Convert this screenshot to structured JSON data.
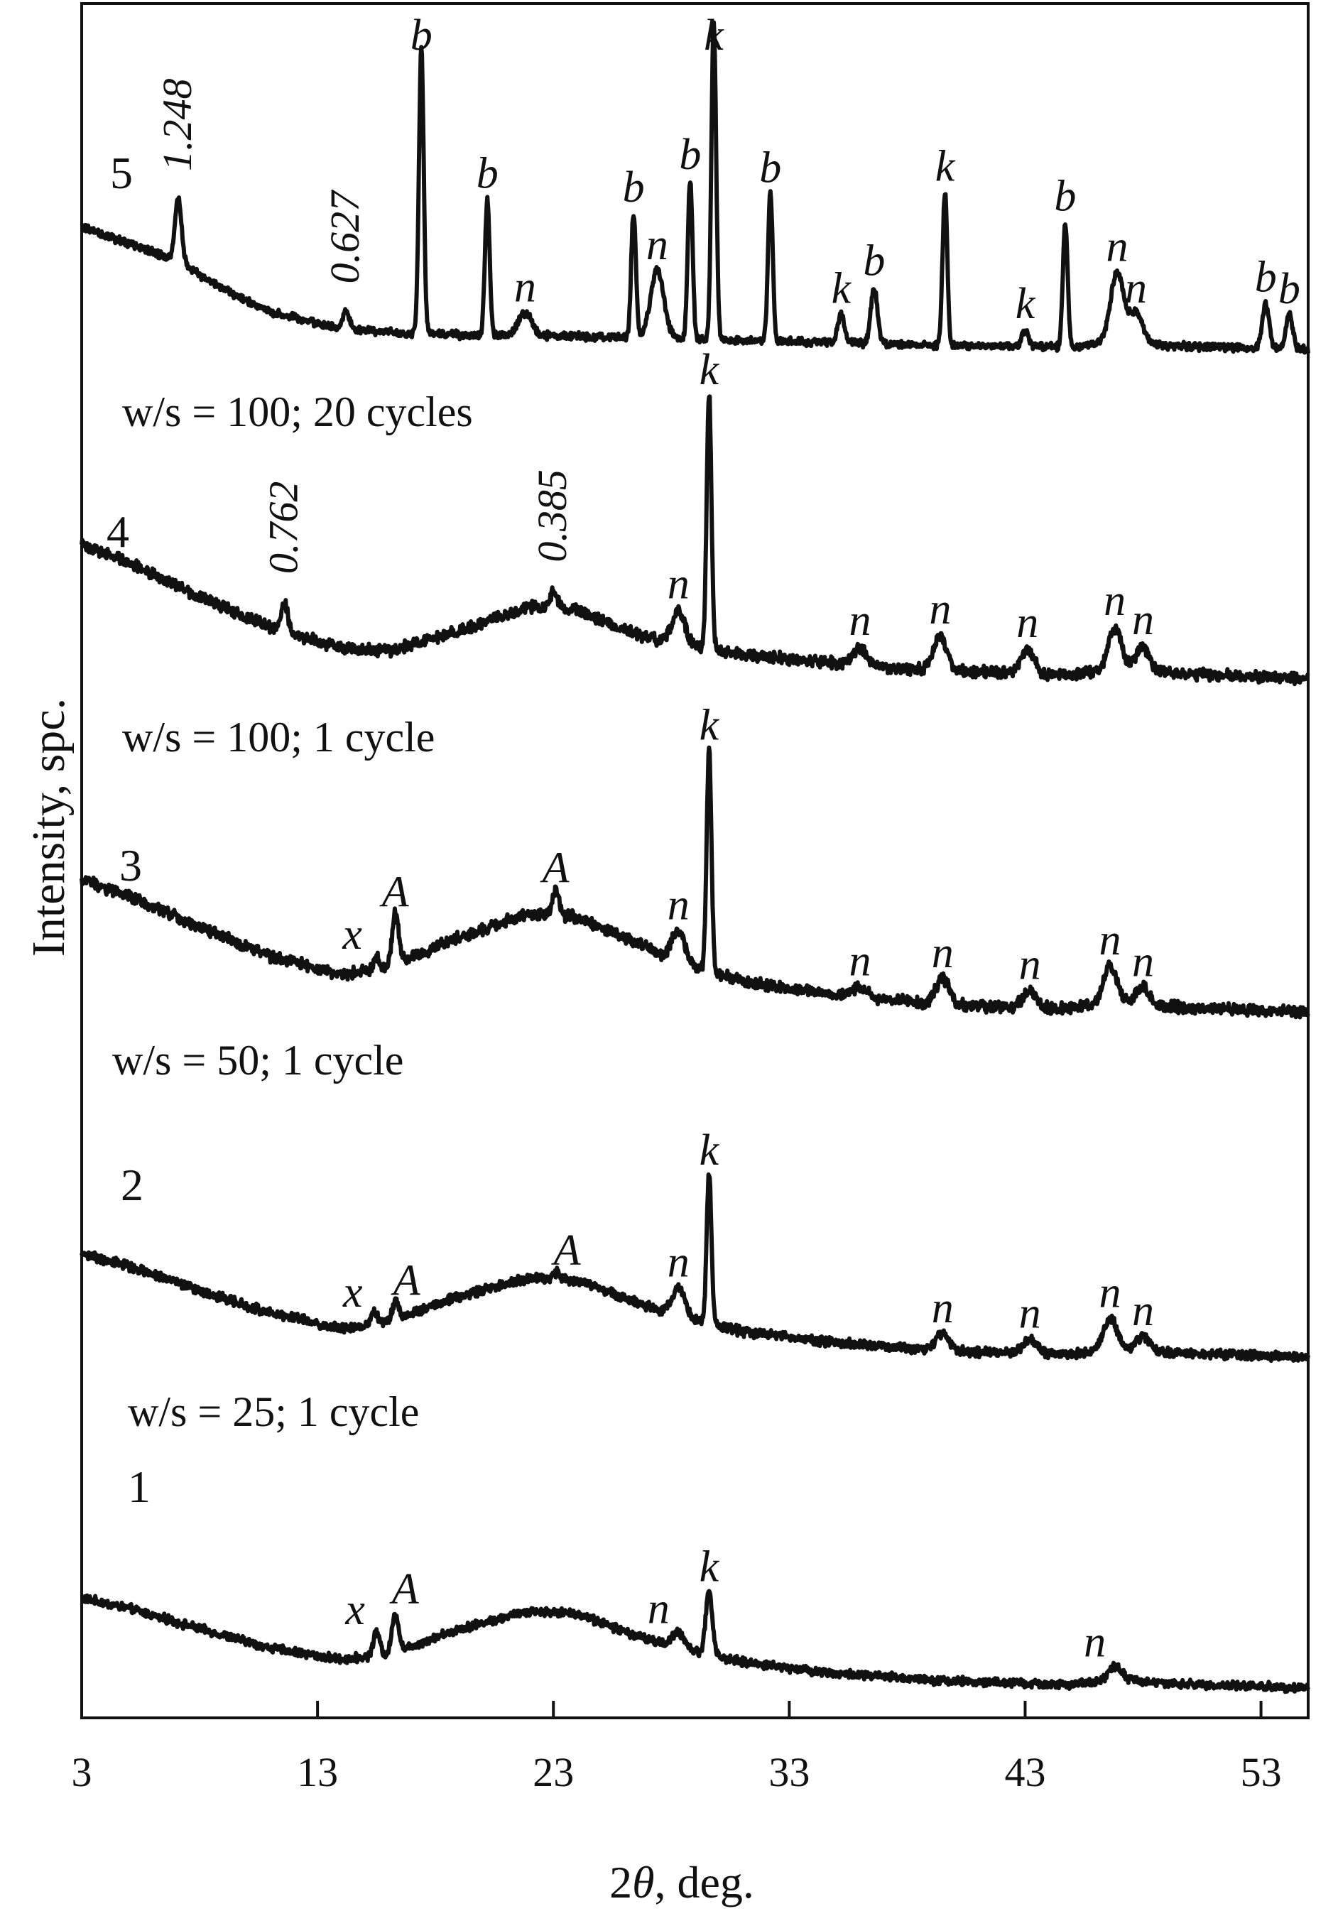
{
  "chart_data": {
    "type": "line",
    "xlabel_parts": [
      "2",
      "θ",
      ", deg."
    ],
    "ylabel": "Intensity, spc.",
    "xlim": [
      3,
      55
    ],
    "x_ticks": [
      3,
      13,
      23,
      33,
      43,
      53
    ],
    "series": [
      {
        "name": "1",
        "condition": "w/s = 25; 1 cycle",
        "baseline": [
          [
            3,
            0.72
          ],
          [
            5,
            0.64
          ],
          [
            8,
            0.48
          ],
          [
            11,
            0.33
          ],
          [
            14,
            0.24
          ],
          [
            16,
            0.28
          ],
          [
            19,
            0.48
          ],
          [
            22,
            0.62
          ],
          [
            24,
            0.6
          ],
          [
            26,
            0.46
          ],
          [
            28,
            0.34
          ],
          [
            31,
            0.22
          ],
          [
            35,
            0.13
          ],
          [
            40,
            0.07
          ],
          [
            45,
            0.04
          ],
          [
            47,
            0.09
          ],
          [
            49,
            0.05
          ],
          [
            55,
            0.02
          ]
        ],
        "peaks": [
          {
            "x": 15.5,
            "h": 0.18,
            "label": "x"
          },
          {
            "x": 16.3,
            "h": 0.3,
            "label": "A"
          },
          {
            "x": 28.3,
            "h": 0.12,
            "label": "n"
          },
          {
            "x": 29.6,
            "h": 0.5,
            "label": "k"
          },
          {
            "x": 46.8,
            "h": 0.1,
            "label": "n"
          }
        ]
      },
      {
        "name": "2",
        "condition": "w/s = 50; 1 cycle",
        "baseline": [
          [
            3,
            0.75
          ],
          [
            5,
            0.66
          ],
          [
            8,
            0.49
          ],
          [
            11,
            0.33
          ],
          [
            14,
            0.22
          ],
          [
            16,
            0.27
          ],
          [
            19,
            0.45
          ],
          [
            22,
            0.58
          ],
          [
            24,
            0.56
          ],
          [
            26,
            0.44
          ],
          [
            28,
            0.32
          ],
          [
            31,
            0.2
          ],
          [
            35,
            0.12
          ],
          [
            40,
            0.06
          ],
          [
            45,
            0.04
          ],
          [
            47,
            0.08
          ],
          [
            49,
            0.05
          ],
          [
            55,
            0.02
          ]
        ],
        "peaks": [
          {
            "x": 15.4,
            "h": 0.08,
            "label": "x"
          },
          {
            "x": 16.3,
            "h": 0.12,
            "label": "A"
          },
          {
            "x": 23.1,
            "h": 0.05,
            "label": "A"
          },
          {
            "x": 28.3,
            "h": 0.2,
            "label": "n"
          },
          {
            "x": 29.6,
            "h": 1.05,
            "label": "k"
          },
          {
            "x": 39.5,
            "h": 0.12,
            "label": "n"
          },
          {
            "x": 43.2,
            "h": 0.1,
            "label": "n"
          },
          {
            "x": 46.6,
            "h": 0.22,
            "label": "n"
          },
          {
            "x": 48.0,
            "h": 0.1,
            "label": "n"
          }
        ]
      },
      {
        "name": "3",
        "condition": "w/s = 100; 1 cycle",
        "baseline": [
          [
            3,
            0.8
          ],
          [
            5,
            0.7
          ],
          [
            8,
            0.52
          ],
          [
            11,
            0.35
          ],
          [
            14,
            0.24
          ],
          [
            16,
            0.28
          ],
          [
            19,
            0.46
          ],
          [
            22,
            0.6
          ],
          [
            24,
            0.58
          ],
          [
            26,
            0.46
          ],
          [
            28,
            0.33
          ],
          [
            31,
            0.2
          ],
          [
            35,
            0.12
          ],
          [
            40,
            0.06
          ],
          [
            45,
            0.04
          ],
          [
            47,
            0.08
          ],
          [
            49,
            0.05
          ],
          [
            55,
            0.02
          ]
        ],
        "peaks": [
          {
            "x": 15.5,
            "h": 0.08,
            "label": "x"
          },
          {
            "x": 16.3,
            "h": 0.3,
            "label": "A"
          },
          {
            "x": 23.1,
            "h": 0.15,
            "label": "A"
          },
          {
            "x": 28.3,
            "h": 0.18,
            "label": "n"
          },
          {
            "x": 29.6,
            "h": 1.3,
            "label": "k"
          },
          {
            "x": 36.0,
            "h": 0.06,
            "label": "n"
          },
          {
            "x": 39.5,
            "h": 0.15,
            "label": "n"
          },
          {
            "x": 43.2,
            "h": 0.1,
            "label": "n"
          },
          {
            "x": 46.6,
            "h": 0.22,
            "label": "n"
          },
          {
            "x": 48.0,
            "h": 0.1,
            "label": "n"
          }
        ]
      },
      {
        "name": "4",
        "condition": "w/s = 100; 20 cycles",
        "baseline": [
          [
            3,
            0.8
          ],
          [
            5,
            0.7
          ],
          [
            8,
            0.5
          ],
          [
            11,
            0.32
          ],
          [
            14,
            0.2
          ],
          [
            16,
            0.18
          ],
          [
            19,
            0.3
          ],
          [
            22,
            0.44
          ],
          [
            24,
            0.43
          ],
          [
            26,
            0.3
          ],
          [
            28,
            0.22
          ],
          [
            31,
            0.16
          ],
          [
            35,
            0.11
          ],
          [
            40,
            0.06
          ],
          [
            45,
            0.04
          ],
          [
            47,
            0.08
          ],
          [
            49,
            0.05
          ],
          [
            55,
            0.02
          ]
        ],
        "peaks": [
          {
            "x": 11.6,
            "h": 0.17,
            "label": "0.762"
          },
          {
            "x": 23.0,
            "h": 0.1,
            "label": "0.385"
          },
          {
            "x": 28.3,
            "h": 0.2,
            "label": "n"
          },
          {
            "x": 29.6,
            "h": 1.5,
            "label": "k"
          },
          {
            "x": 36.0,
            "h": 0.1,
            "label": "n"
          },
          {
            "x": 39.4,
            "h": 0.2,
            "label": "n"
          },
          {
            "x": 43.1,
            "h": 0.14,
            "label": "n"
          },
          {
            "x": 46.8,
            "h": 0.24,
            "label": "n"
          },
          {
            "x": 48.0,
            "h": 0.14,
            "label": "n"
          }
        ]
      },
      {
        "name": "5",
        "condition": "",
        "baseline": [
          [
            3,
            1.1
          ],
          [
            5,
            0.95
          ],
          [
            7,
            0.8
          ],
          [
            9,
            0.55
          ],
          [
            11,
            0.35
          ],
          [
            14,
            0.2
          ],
          [
            17,
            0.16
          ],
          [
            20,
            0.14
          ],
          [
            23,
            0.14
          ],
          [
            26,
            0.12
          ],
          [
            30,
            0.1
          ],
          [
            35,
            0.08
          ],
          [
            40,
            0.05
          ],
          [
            45,
            0.04
          ],
          [
            47,
            0.1
          ],
          [
            49,
            0.05
          ],
          [
            55,
            0.02
          ]
        ],
        "peaks": [
          {
            "x": 7.1,
            "h": 0.55,
            "label": "1.248"
          },
          {
            "x": 14.2,
            "h": 0.15,
            "label": "0.627"
          },
          {
            "x": 17.4,
            "h": 2.5,
            "label": "b"
          },
          {
            "x": 20.2,
            "h": 1.2,
            "label": "b"
          },
          {
            "x": 21.8,
            "h": 0.2,
            "label": "n"
          },
          {
            "x": 26.4,
            "h": 1.1,
            "label": "b"
          },
          {
            "x": 27.4,
            "h": 0.6,
            "label": "n"
          },
          {
            "x": 28.8,
            "h": 1.4,
            "label": "b"
          },
          {
            "x": 29.8,
            "h": 2.8,
            "label": "k"
          },
          {
            "x": 32.2,
            "h": 1.3,
            "label": "b"
          },
          {
            "x": 35.2,
            "h": 0.25,
            "label": "k"
          },
          {
            "x": 36.6,
            "h": 0.5,
            "label": "b"
          },
          {
            "x": 39.6,
            "h": 1.35,
            "label": "k"
          },
          {
            "x": 43.0,
            "h": 0.15,
            "label": "k"
          },
          {
            "x": 44.7,
            "h": 1.1,
            "label": "b"
          },
          {
            "x": 46.9,
            "h": 0.6,
            "label": "n"
          },
          {
            "x": 47.7,
            "h": 0.25,
            "label": "n"
          },
          {
            "x": 53.2,
            "h": 0.4,
            "label": "b"
          },
          {
            "x": 54.2,
            "h": 0.3,
            "label": "b"
          }
        ]
      }
    ]
  }
}
